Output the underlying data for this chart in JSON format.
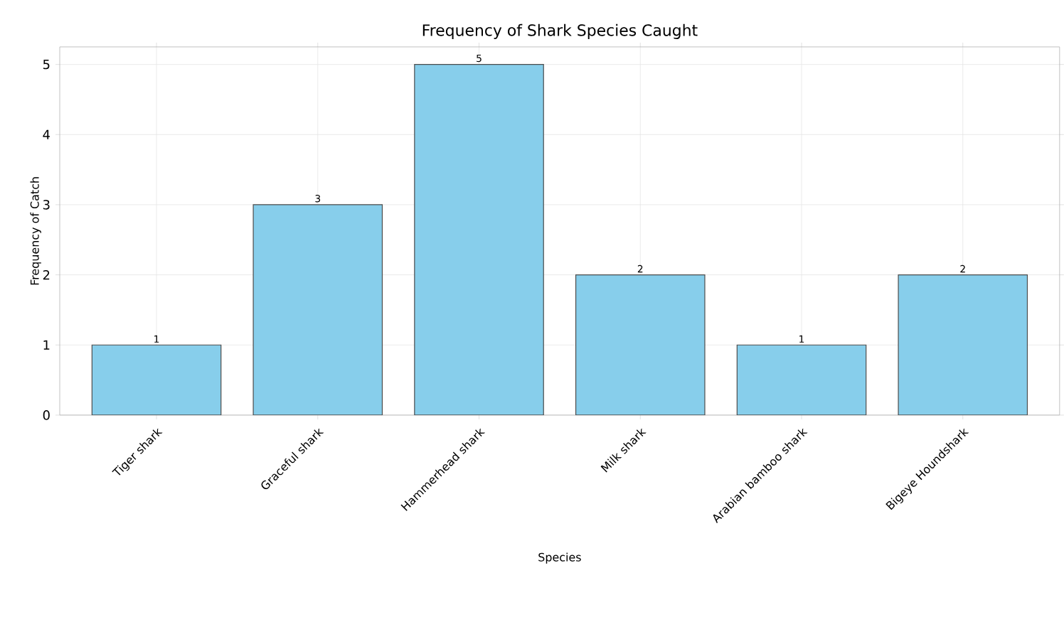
{
  "chart_data": {
    "type": "bar",
    "title": "Frequency of Shark Species Caught",
    "xlabel": "Species",
    "ylabel": "Frequency of Catch",
    "categories": [
      "Tiger shark",
      "Graceful shark",
      "Hammerhead shark",
      "Milk shark",
      "Arabian bamboo shark",
      "Bigeye Houndshark"
    ],
    "values": [
      1,
      3,
      5,
      2,
      1,
      2
    ],
    "color": "#87ceeb",
    "ylim": [
      0,
      5.25
    ],
    "yticks": [
      0,
      1,
      2,
      3,
      4,
      5
    ],
    "grid": true,
    "data_labels": true
  }
}
